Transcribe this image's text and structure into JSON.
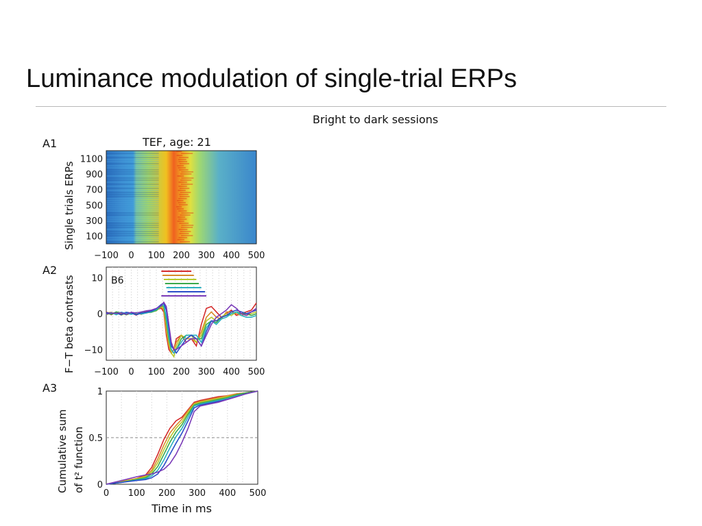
{
  "slide": {
    "title": "Luminance modulation of single-trial ERPs"
  },
  "figure": {
    "header": "Bright to dark sessions"
  },
  "colors": {
    "series": [
      "#d42a2a",
      "#d88a2a",
      "#b8c82a",
      "#3aa84a",
      "#2ab0c0",
      "#2a4cc8",
      "#7a3ab8"
    ],
    "grid": "#c8c8c8",
    "axis": "#222222"
  },
  "chart_data": [
    {
      "panel_label": "A1",
      "type": "heatmap",
      "title": "TEF, age: 21",
      "xlabel": "",
      "ylabel": "Single trials ERPs",
      "x_ticks": [
        "−100",
        "0",
        "100",
        "200",
        "300",
        "400",
        "500"
      ],
      "y_ticks": [
        "100",
        "300",
        "500",
        "700",
        "900",
        "1100"
      ],
      "xlim": [
        -100,
        500
      ],
      "ylim": [
        0,
        1200
      ],
      "colormap": "jet",
      "description_values": {
        "peak_latency_ms": 200,
        "pre_stimulus_level": "low (blue)",
        "peak_level": "high (red)"
      }
    },
    {
      "panel_label": "A2",
      "type": "line",
      "annotation": "B6",
      "xlabel": "",
      "ylabel": "F−T beta contrasts",
      "x_ticks": [
        "−100",
        "0",
        "100",
        "200",
        "300",
        "400",
        "500"
      ],
      "y_ticks": [
        "10",
        "0",
        "−10"
      ],
      "xlim": [
        -100,
        500
      ],
      "ylim": [
        -13,
        13
      ],
      "grid": "vertical dotted",
      "significance_bars": [
        {
          "series": 0,
          "start": 120,
          "end": 240
        },
        {
          "series": 1,
          "start": 125,
          "end": 250
        },
        {
          "series": 2,
          "start": 130,
          "end": 260
        },
        {
          "series": 3,
          "start": 135,
          "end": 270
        },
        {
          "series": 4,
          "start": 140,
          "end": 280
        },
        {
          "series": 5,
          "start": 145,
          "end": 295
        },
        {
          "series": 6,
          "start": 120,
          "end": 300
        }
      ],
      "x": [
        -100,
        -80,
        -60,
        -40,
        -20,
        0,
        20,
        40,
        60,
        80,
        100,
        120,
        130,
        140,
        150,
        160,
        170,
        180,
        200,
        220,
        240,
        260,
        280,
        300,
        320,
        340,
        360,
        380,
        400,
        420,
        440,
        460,
        480,
        500
      ],
      "series": [
        {
          "values": [
            0.5,
            -0.3,
            0.4,
            -0.2,
            0.3,
            0.2,
            -0.4,
            0.3,
            0.5,
            0.8,
            1.2,
            1.5,
            0.5,
            -6,
            -10,
            -11,
            -10,
            -7,
            -6,
            -8,
            -7,
            -9,
            -3,
            1.5,
            2,
            0.5,
            -1,
            0,
            1,
            -0.5,
            0,
            0.5,
            1,
            3
          ]
        },
        {
          "values": [
            0.2,
            0.4,
            -0.2,
            0.3,
            -0.3,
            0.1,
            0.3,
            -0.2,
            0.4,
            0.6,
            1.0,
            1.8,
            1.0,
            -5,
            -9,
            -11,
            -10,
            -8,
            -6,
            -7,
            -7,
            -8,
            -5,
            -1,
            0.5,
            -1,
            -1.5,
            0.5,
            0.5,
            0,
            -0.5,
            0,
            0.5,
            1
          ]
        },
        {
          "values": [
            -0.3,
            0.2,
            0.3,
            -0.4,
            0.2,
            -0.1,
            0.2,
            0.4,
            0.2,
            0.5,
            0.8,
            2.0,
            1.5,
            -3,
            -8,
            -11,
            -12,
            -9,
            -6,
            -7,
            -6,
            -8,
            -6,
            -2,
            -1,
            -2,
            -1,
            0,
            -0.5,
            0.5,
            0,
            -0.5,
            0,
            0.5
          ]
        },
        {
          "values": [
            0.1,
            -0.2,
            0.5,
            0.2,
            -0.3,
            0.3,
            -0.2,
            0.1,
            0.3,
            0.4,
            0.9,
            2.2,
            2.0,
            -2,
            -7,
            -10,
            -11,
            -10,
            -7,
            -6,
            -6,
            -7,
            -7,
            -3,
            -2,
            -2.5,
            -1,
            -0.5,
            0,
            0.5,
            0,
            0,
            -0.5,
            0
          ]
        },
        {
          "values": [
            -0.2,
            0.3,
            -0.3,
            0.4,
            0.1,
            -0.2,
            0.3,
            -0.1,
            0.2,
            0.6,
            1.1,
            2.4,
            2.5,
            -1,
            -6,
            -10,
            -11,
            -10,
            -8,
            -6,
            -6,
            -6,
            -8,
            -4,
            -2,
            -3,
            -1.5,
            -1,
            0,
            0.5,
            -0.5,
            -1,
            -1,
            -0.5
          ]
        },
        {
          "values": [
            0.3,
            0.1,
            0.2,
            -0.3,
            0.4,
            0.2,
            -0.3,
            0.2,
            0.4,
            0.7,
            1.4,
            2.6,
            3.0,
            1,
            -4,
            -9,
            -10,
            -11,
            -9,
            -7,
            -6,
            -7,
            -9,
            -5,
            -2,
            -2,
            -1,
            -0.5,
            0.5,
            1,
            0.5,
            0,
            0.5,
            1
          ]
        },
        {
          "values": [
            -0.1,
            0.2,
            0.1,
            0.3,
            -0.2,
            0.4,
            0.2,
            0.5,
            0.8,
            1.0,
            1.5,
            2.2,
            3.2,
            2,
            -3,
            -8,
            -10,
            -10,
            -9,
            -8,
            -7,
            -7,
            -9,
            -6,
            -3,
            -1,
            0,
            1,
            2.5,
            1.5,
            0,
            -0.5,
            0.5,
            1.5
          ]
        }
      ]
    },
    {
      "panel_label": "A3",
      "type": "line",
      "xlabel": "Time in ms",
      "ylabel_lines": [
        "Cumulative sum",
        "of t² function"
      ],
      "x_ticks": [
        "0",
        "100",
        "200",
        "300",
        "400",
        "500"
      ],
      "y_ticks": [
        "1",
        "0.5",
        "0"
      ],
      "xlim": [
        0,
        500
      ],
      "ylim": [
        0,
        1
      ],
      "reference_line": 0.5,
      "grid": "vertical dotted",
      "x": [
        0,
        50,
        100,
        130,
        150,
        170,
        190,
        210,
        230,
        250,
        270,
        290,
        310,
        340,
        370,
        400,
        430,
        460,
        500
      ],
      "series": [
        {
          "values": [
            0,
            0.03,
            0.06,
            0.1,
            0.18,
            0.32,
            0.48,
            0.6,
            0.68,
            0.72,
            0.8,
            0.88,
            0.9,
            0.92,
            0.94,
            0.95,
            0.97,
            0.98,
            1
          ]
        },
        {
          "values": [
            0,
            0.03,
            0.06,
            0.09,
            0.15,
            0.27,
            0.42,
            0.55,
            0.63,
            0.7,
            0.79,
            0.87,
            0.89,
            0.91,
            0.93,
            0.95,
            0.97,
            0.98,
            1
          ]
        },
        {
          "values": [
            0,
            0.025,
            0.055,
            0.08,
            0.13,
            0.23,
            0.37,
            0.5,
            0.6,
            0.67,
            0.77,
            0.86,
            0.88,
            0.9,
            0.92,
            0.94,
            0.96,
            0.98,
            1
          ]
        },
        {
          "values": [
            0,
            0.02,
            0.05,
            0.07,
            0.11,
            0.19,
            0.32,
            0.45,
            0.56,
            0.64,
            0.75,
            0.85,
            0.87,
            0.89,
            0.91,
            0.93,
            0.96,
            0.98,
            1
          ]
        },
        {
          "values": [
            0,
            0.02,
            0.045,
            0.06,
            0.09,
            0.15,
            0.26,
            0.39,
            0.51,
            0.6,
            0.72,
            0.84,
            0.86,
            0.88,
            0.9,
            0.92,
            0.95,
            0.97,
            1
          ]
        },
        {
          "values": [
            0,
            0.02,
            0.04,
            0.05,
            0.07,
            0.11,
            0.2,
            0.32,
            0.44,
            0.55,
            0.68,
            0.82,
            0.85,
            0.87,
            0.89,
            0.91,
            0.94,
            0.97,
            1
          ]
        },
        {
          "values": [
            0,
            0.04,
            0.08,
            0.1,
            0.11,
            0.13,
            0.16,
            0.22,
            0.32,
            0.45,
            0.6,
            0.78,
            0.84,
            0.86,
            0.88,
            0.91,
            0.94,
            0.97,
            1
          ]
        }
      ]
    }
  ]
}
